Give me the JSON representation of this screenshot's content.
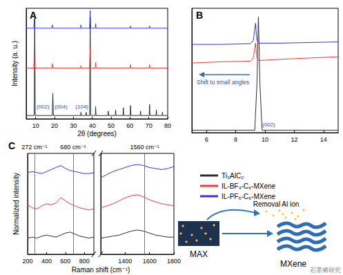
{
  "chart_data": [
    {
      "type": "line",
      "title": "A",
      "x_label": "2θ (degrees)",
      "y_label": "Intensity (a. u.)",
      "xlim": [
        5,
        80
      ],
      "xticks": [
        10,
        20,
        30,
        40,
        50,
        60,
        70,
        80
      ],
      "ylim": [
        0,
        100
      ],
      "tick_labels": "x",
      "legend": "lower right",
      "annotations": [
        "(002)",
        "(004)",
        "(104)"
      ],
      "series": [
        {
          "name": "Ti₃AlC₂",
          "color": "#2b2b2b",
          "x": [
            5,
            9.2,
            9.5,
            9.8,
            18.8,
            19.1,
            19.4,
            33.8,
            34.0,
            34.2,
            36.6,
            36.8,
            37.0,
            38.6,
            38.9,
            39.2,
            41.6,
            41.8,
            42.0,
            48.3,
            48.5,
            48.7,
            52.2,
            52.4,
            52.6,
            56.3,
            56.5,
            56.7,
            60.1,
            60.3,
            60.5,
            65.4,
            65.6,
            65.8,
            70.2,
            70.4,
            70.6,
            73.8,
            74.0,
            74.2,
            77.0,
            77.2,
            77.4,
            80
          ],
          "values": [
            3,
            3,
            95,
            3,
            3,
            23,
            3,
            3,
            6,
            3,
            3,
            6,
            3,
            3,
            92,
            3,
            3,
            11,
            3,
            3,
            7,
            3,
            3,
            8,
            3,
            3,
            10,
            3,
            3,
            12,
            3,
            3,
            7,
            3,
            3,
            13,
            3,
            3,
            8,
            3,
            3,
            6,
            3,
            3
          ]
        },
        {
          "name": "IL-BF₄-C₆-MXene",
          "color": "#ee3b3b",
          "x": [
            5,
            9.0,
            9.3,
            9.6,
            18.5,
            18.8,
            19.1,
            33.8,
            34.0,
            34.2,
            38.6,
            38.9,
            39.2,
            41.6,
            41.8,
            42.0,
            60.1,
            60.3,
            60.5,
            70.2,
            70.4,
            70.6,
            80
          ],
          "values": [
            46,
            46,
            59,
            46,
            46,
            50,
            46,
            46,
            48,
            46,
            46,
            63,
            46,
            46,
            51,
            46,
            46,
            49,
            46,
            46,
            49,
            46,
            46
          ]
        },
        {
          "name": "IL-PF₆-C₆-MXene",
          "color": "#3535e8",
          "x": [
            5,
            9.0,
            9.3,
            9.6,
            18.5,
            18.8,
            19.1,
            33.8,
            34.0,
            34.2,
            38.6,
            38.9,
            39.2,
            41.6,
            41.8,
            42.0,
            60.1,
            60.3,
            60.5,
            70.2,
            70.4,
            70.6,
            80
          ],
          "values": [
            82,
            82,
            90,
            82,
            82,
            85,
            82,
            82,
            85,
            82,
            82,
            98,
            82,
            82,
            86,
            82,
            82,
            84,
            82,
            82,
            84,
            82,
            82
          ]
        }
      ]
    },
    {
      "type": "line",
      "title": "B",
      "xlim": [
        5,
        15
      ],
      "xticks": [
        6,
        8,
        10,
        12,
        14
      ],
      "ylim": [
        0,
        100
      ],
      "tick_labels": "x",
      "annotations": [
        "(002)",
        "Shift to small angles"
      ],
      "series": [
        {
          "name": "Ti₃AlC₂",
          "color": "#2b2b2b",
          "x": [
            5,
            9.3,
            9.45,
            9.55,
            9.65,
            9.8,
            15
          ],
          "values": [
            2,
            2,
            40,
            93,
            40,
            2,
            2
          ]
        },
        {
          "name": "IL-BF₄-C₆-MXene",
          "color": "#ee3b3b",
          "x": [
            5,
            7,
            9,
            9.2,
            9.35,
            9.45,
            9.6,
            11,
            13,
            15
          ],
          "values": [
            56,
            57,
            57.5,
            60,
            72,
            60,
            58,
            59,
            60,
            61
          ]
        },
        {
          "name": "IL-PF₆-C₆-MXene",
          "color": "#3535e8",
          "x": [
            5,
            7,
            9,
            9.2,
            9.35,
            9.45,
            9.6,
            11,
            13,
            15
          ],
          "values": [
            71,
            71,
            71.5,
            74,
            88,
            74,
            72,
            72,
            72.5,
            73
          ]
        }
      ]
    },
    {
      "type": "line",
      "title": "C",
      "x_label": "Raman shift (cm⁻¹)",
      "y_label": "Normalized intensity",
      "xlim": [
        200,
        1800
      ],
      "x_break": [
        900,
        1200
      ],
      "xticks": [
        200,
        400,
        600,
        800,
        1400,
        1600,
        1800
      ],
      "ylim": [
        0,
        10
      ],
      "tick_labels": "x",
      "reference_lines": [
        {
          "x": 272,
          "label": "272 cm⁻¹"
        },
        {
          "x": 680,
          "label": "680 cm⁻¹"
        },
        {
          "x": 1560,
          "label": "1560 cm⁻¹"
        }
      ],
      "x": [
        200,
        250,
        300,
        350,
        400,
        450,
        500,
        550,
        600,
        650,
        700,
        750,
        800,
        850,
        900,
        1200,
        1250,
        1300,
        1350,
        1400,
        1450,
        1500,
        1550,
        1600,
        1650,
        1700,
        1750,
        1800
      ],
      "series": [
        {
          "name": "Ti₃AlC₂",
          "color": "#2b2b2b",
          "values": [
            1.6,
            1.7,
            1.6,
            1.8,
            1.9,
            1.8,
            1.7,
            1.9,
            2.1,
            2.2,
            2.0,
            1.8,
            1.7,
            1.6,
            1.7,
            1.6,
            1.7,
            1.8,
            1.9,
            2.1,
            2.3,
            2.4,
            2.3,
            2.1,
            1.9,
            1.8,
            1.7,
            1.7
          ]
        },
        {
          "name": "IL-BF₄-C₆-MXene",
          "color": "#ee3b3b",
          "values": [
            4.9,
            4.6,
            4.5,
            4.8,
            5.0,
            4.9,
            5.1,
            5.6,
            5.3,
            5.0,
            4.8,
            4.6,
            4.5,
            4.4,
            4.5,
            4.6,
            4.8,
            5.0,
            5.3,
            5.6,
            5.8,
            5.9,
            5.7,
            5.4,
            5.2,
            5.0,
            4.9,
            4.8
          ]
        },
        {
          "name": "IL-PF₆-C₆-MXene",
          "color": "#3535e8",
          "values": [
            8.1,
            8.2,
            8.1,
            8.0,
            8.2,
            8.4,
            8.6,
            8.8,
            8.5,
            8.3,
            8.2,
            8.1,
            8.0,
            8.0,
            8.1,
            7.6,
            7.9,
            8.2,
            8.4,
            8.6,
            8.8,
            8.9,
            8.8,
            8.6,
            8.5,
            8.4,
            8.5,
            8.7
          ]
        }
      ]
    }
  ],
  "diagram": {
    "removal": "Removal Al ion",
    "from": "MAX",
    "to": "MXene"
  },
  "watermark": "石墨烯研究"
}
